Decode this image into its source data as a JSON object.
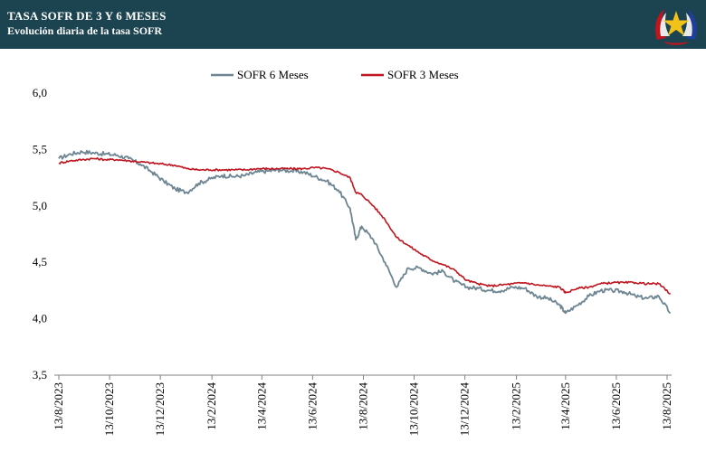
{
  "header": {
    "title": "TASA SOFR DE 3 Y 6 MESES",
    "subtitle": "Evolución diaria de la tasa SOFR"
  },
  "chart_data": {
    "type": "line",
    "title": "TASA SOFR DE 3 Y 6 MESES",
    "subtitle": "Evolución diaria de la tasa SOFR",
    "xlabel": "",
    "ylabel": "",
    "ylim": [
      3.5,
      6.0
    ],
    "yticks": [
      "3,5",
      "4,0",
      "4,5",
      "5,0",
      "5,5",
      "6,0"
    ],
    "xticks": [
      "13/8/2023",
      "13/10/2023",
      "13/12/2023",
      "13/2/2024",
      "13/4/2024",
      "13/6/2024",
      "13/8/2024",
      "13/10/2024",
      "13/12/2024",
      "13/2/2025",
      "13/4/2025",
      "13/6/2025",
      "13/8/2025"
    ],
    "x": [
      "2023-08-13",
      "2023-08-27",
      "2023-09-10",
      "2023-09-24",
      "2023-10-08",
      "2023-10-22",
      "2023-11-05",
      "2023-11-19",
      "2023-12-03",
      "2023-12-17",
      "2023-12-31",
      "2024-01-14",
      "2024-01-28",
      "2024-02-11",
      "2024-02-25",
      "2024-03-10",
      "2024-03-24",
      "2024-04-07",
      "2024-04-21",
      "2024-05-05",
      "2024-05-19",
      "2024-06-02",
      "2024-06-16",
      "2024-06-30",
      "2024-07-14",
      "2024-07-28",
      "2024-08-04",
      "2024-08-11",
      "2024-08-25",
      "2024-09-08",
      "2024-09-22",
      "2024-10-06",
      "2024-10-20",
      "2024-11-03",
      "2024-11-17",
      "2024-12-01",
      "2024-12-15",
      "2024-12-29",
      "2025-01-12",
      "2025-01-26",
      "2025-02-09",
      "2025-02-23",
      "2025-03-09",
      "2025-03-23",
      "2025-04-06",
      "2025-04-13",
      "2025-04-27",
      "2025-05-11",
      "2025-05-25",
      "2025-06-08",
      "2025-06-22",
      "2025-07-06",
      "2025-07-20",
      "2025-08-03",
      "2025-08-17"
    ],
    "series": [
      {
        "name": "SOFR 6 Meses",
        "color": "#6d8592",
        "values": [
          5.42,
          5.46,
          5.48,
          5.47,
          5.46,
          5.45,
          5.42,
          5.37,
          5.3,
          5.22,
          5.15,
          5.12,
          5.2,
          5.24,
          5.27,
          5.26,
          5.27,
          5.3,
          5.31,
          5.32,
          5.31,
          5.3,
          5.26,
          5.22,
          5.14,
          4.98,
          4.7,
          4.82,
          4.7,
          4.5,
          4.28,
          4.45,
          4.45,
          4.4,
          4.42,
          4.33,
          4.28,
          4.27,
          4.25,
          4.25,
          4.28,
          4.27,
          4.2,
          4.18,
          4.12,
          4.05,
          4.12,
          4.2,
          4.25,
          4.25,
          4.24,
          4.2,
          4.18,
          4.2,
          4.05
        ]
      },
      {
        "name": "SOFR 3 Meses",
        "color": "#c0141f",
        "values": [
          5.38,
          5.4,
          5.41,
          5.42,
          5.41,
          5.41,
          5.4,
          5.39,
          5.38,
          5.37,
          5.36,
          5.33,
          5.32,
          5.32,
          5.32,
          5.32,
          5.32,
          5.33,
          5.33,
          5.33,
          5.33,
          5.33,
          5.34,
          5.33,
          5.3,
          5.25,
          5.12,
          5.1,
          5.0,
          4.88,
          4.72,
          4.65,
          4.58,
          4.52,
          4.48,
          4.43,
          4.34,
          4.31,
          4.29,
          4.3,
          4.31,
          4.32,
          4.3,
          4.29,
          4.28,
          4.23,
          4.27,
          4.28,
          4.31,
          4.32,
          4.32,
          4.32,
          4.31,
          4.31,
          4.22
        ]
      }
    ],
    "legend": "top-center",
    "grid": false
  }
}
